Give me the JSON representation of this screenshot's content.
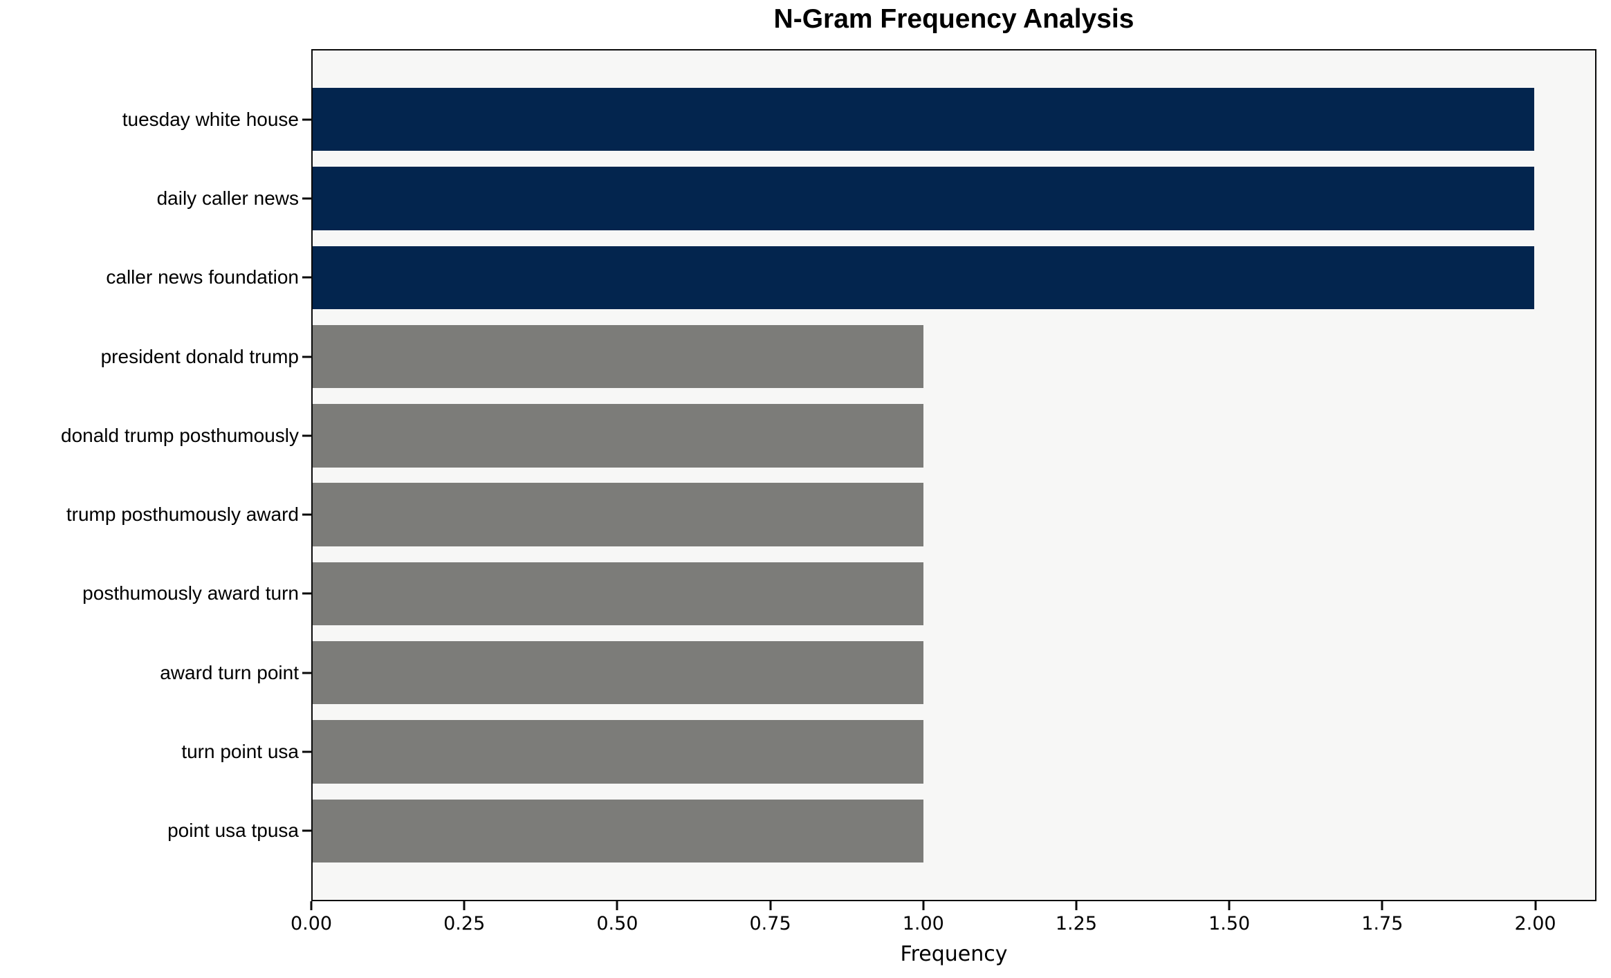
{
  "chart_data": {
    "type": "bar",
    "orientation": "horizontal",
    "title": "N-Gram Frequency Analysis",
    "xlabel": "Frequency",
    "ylabel": "",
    "categories": [
      "tuesday white house",
      "daily caller news",
      "caller news foundation",
      "president donald trump",
      "donald trump posthumously",
      "trump posthumously award",
      "posthumously award turn",
      "award turn point",
      "turn point usa",
      "point usa tpusa"
    ],
    "values": [
      2,
      2,
      2,
      1,
      1,
      1,
      1,
      1,
      1,
      1
    ],
    "bar_colors": [
      "#03254e",
      "#03254e",
      "#03254e",
      "#7c7c79",
      "#7c7c79",
      "#7c7c79",
      "#7c7c79",
      "#7c7c79",
      "#7c7c79",
      "#7c7c79"
    ],
    "xlim": [
      0,
      2.1
    ],
    "xticks": [
      "0.00",
      "0.25",
      "0.50",
      "0.75",
      "1.00",
      "1.25",
      "1.50",
      "1.75",
      "2.00"
    ],
    "xtick_values": [
      0,
      0.25,
      0.5,
      0.75,
      1.0,
      1.25,
      1.5,
      1.75,
      2.0
    ],
    "grid": "off",
    "legend": "none",
    "colors": {
      "highlight_bar": "#03254e",
      "default_bar": "#7c7c79",
      "plot_background": "#f7f7f6",
      "figure_background": "#ffffff",
      "frame": "#0a0a0a",
      "text": "#000000"
    }
  }
}
